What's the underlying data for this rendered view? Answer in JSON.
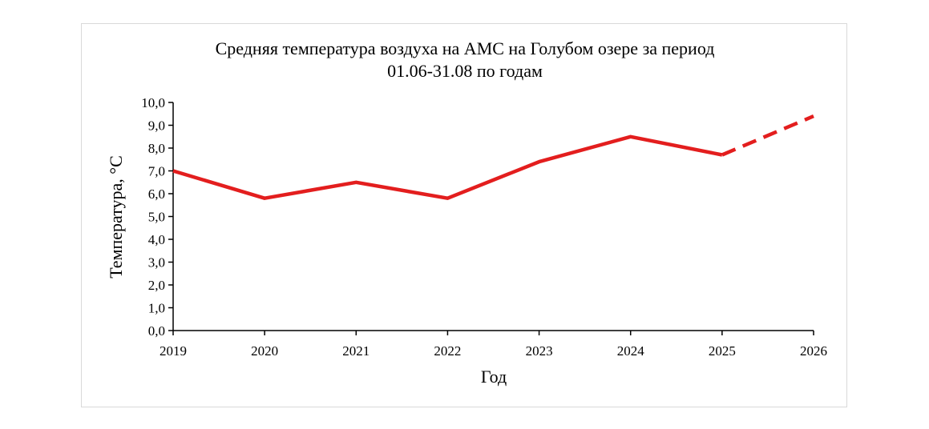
{
  "chart_data": {
    "type": "line",
    "title_line1": "Средняя температура воздуха на АМС на Голубом озере за период",
    "title_line2": "01.06-31.08 по годам",
    "xlabel": "Год",
    "ylabel": "Температура, °С",
    "x_ticks": [
      "2019",
      "2020",
      "2021",
      "2022",
      "2023",
      "2024",
      "2025",
      "2026"
    ],
    "y_ticks": [
      "0,0",
      "1,0",
      "2,0",
      "3,0",
      "4,0",
      "5,0",
      "6,0",
      "7,0",
      "8,0",
      "9,0",
      "10,0"
    ],
    "xlim": [
      2019,
      2026
    ],
    "ylim": [
      0,
      10
    ],
    "grid": false,
    "legend": "none",
    "series": [
      {
        "style": "solid",
        "color": "#e31e1e",
        "x": [
          2019,
          2020,
          2021,
          2022,
          2023,
          2024,
          2025
        ],
        "y": [
          7.0,
          5.8,
          6.5,
          5.8,
          7.4,
          8.5,
          7.7
        ]
      },
      {
        "style": "dashed",
        "color": "#e31e1e",
        "x": [
          2025,
          2026
        ],
        "y": [
          7.7,
          9.4
        ]
      }
    ]
  }
}
